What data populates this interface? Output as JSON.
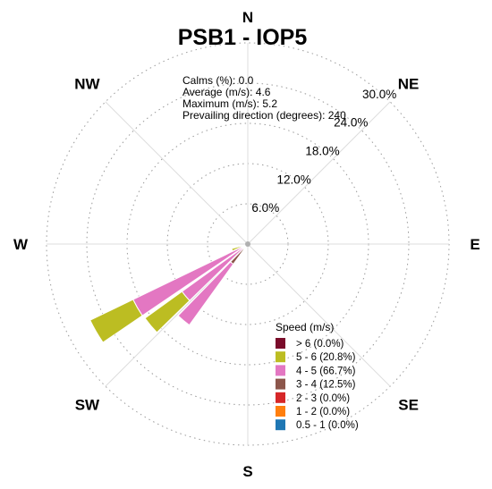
{
  "chart_data": {
    "type": "windrose",
    "title": "PSB1 - IOP5",
    "directions": [
      "N",
      "NE",
      "E",
      "SE",
      "S",
      "SW",
      "W",
      "NW"
    ],
    "radial_ticks": [
      6.0,
      12.0,
      18.0,
      24.0,
      30.0
    ],
    "radial_tick_labels": [
      "6.0%",
      "12.0%",
      "18.0%",
      "24.0%",
      "30.0%"
    ],
    "radial_max": 30.0,
    "grid": true,
    "stats": {
      "calms": "Calms (%): 0.0",
      "average": "Average (m/s): 4.6",
      "maximum": "Maximum (m/s): 5.2",
      "prevailing": "Prevailing direction (degrees): 240"
    },
    "legend": {
      "title": "Speed (m/s)",
      "placement": "bottom-right",
      "items": [
        {
          "label": "> 6 (0.0%)",
          "color": "#7a0c2a"
        },
        {
          "label": "5 - 6 (20.8%)",
          "color": "#bcbd22"
        },
        {
          "label": "4 - 5 (66.7%)",
          "color": "#e377c2"
        },
        {
          "label": "3 - 4 (12.5%)",
          "color": "#8c564b"
        },
        {
          "label": "2 - 3 (0.0%)",
          "color": "#d62728"
        },
        {
          "label": "1 - 2 (0.0%)",
          "color": "#ff7f0e"
        },
        {
          "label": "0.5 - 1 (0.0%)",
          "color": "#1f77b4"
        }
      ]
    },
    "series": [
      {
        "direction_deg": 230,
        "segments": [
          {
            "speed_bin": "3 - 4",
            "upper": 0.5
          },
          {
            "speed_bin": "4 - 5",
            "upper": 12.1
          },
          {
            "speed_bin": "5 - 6",
            "upper": 18.9
          }
        ]
      },
      {
        "direction_deg": 240,
        "segments": [
          {
            "speed_bin": "3 - 4",
            "upper": 1.0
          },
          {
            "speed_bin": "4 - 5",
            "upper": 19.0
          },
          {
            "speed_bin": "5 - 6",
            "upper": 26.1
          }
        ]
      },
      {
        "direction_deg": 250,
        "segments": [
          {
            "speed_bin": "3 - 4",
            "upper": 0.9
          },
          {
            "speed_bin": "4 - 5",
            "upper": 0.9
          },
          {
            "speed_bin": "5 - 6",
            "upper": 2.5
          }
        ]
      },
      {
        "direction_deg": 220,
        "segments": [
          {
            "speed_bin": "3 - 4",
            "upper": 3.7
          },
          {
            "speed_bin": "4 - 5",
            "upper": 14.9
          },
          {
            "speed_bin": "5 - 6",
            "upper": 14.9
          }
        ]
      }
    ]
  }
}
